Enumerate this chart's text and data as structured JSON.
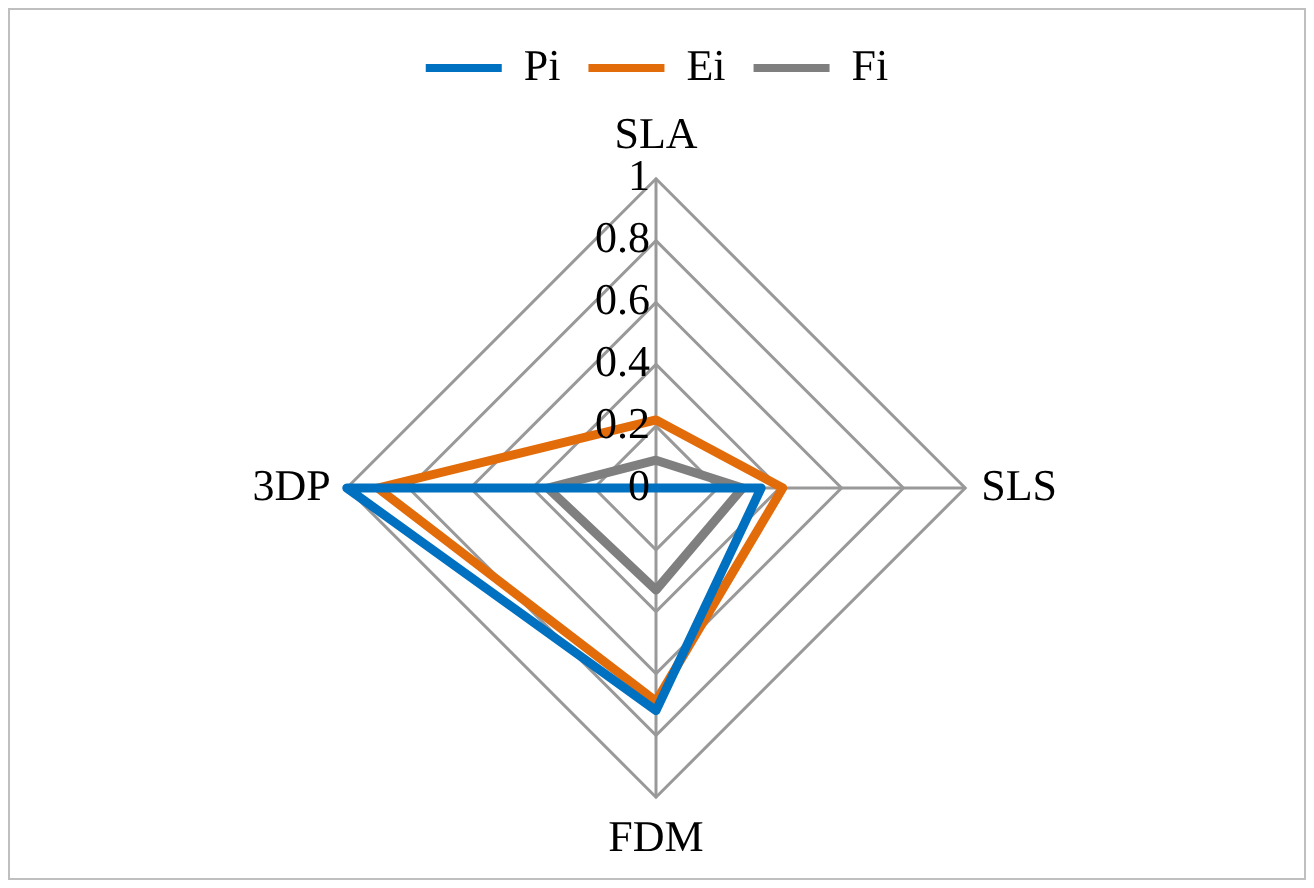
{
  "chart_data": {
    "type": "radar",
    "categories": [
      "SLA",
      "SLS",
      "FDM",
      "3DP"
    ],
    "series": [
      {
        "name": "Pi",
        "color": "#0070c0",
        "values": [
          0,
          0.34,
          0.72,
          1
        ]
      },
      {
        "name": "Ei",
        "color": "#e36c0a",
        "values": [
          0.22,
          0.41,
          0.69,
          0.9
        ]
      },
      {
        "name": "Fi",
        "color": "#7f7f7f",
        "values": [
          0.09,
          0.28,
          0.33,
          0.35
        ]
      }
    ],
    "ylim": [
      0,
      1
    ],
    "yticks": [
      0,
      0.2,
      0.4,
      0.6,
      0.8,
      1
    ],
    "grid": true,
    "legend": "top",
    "marker": "none",
    "line_style": "solid"
  }
}
